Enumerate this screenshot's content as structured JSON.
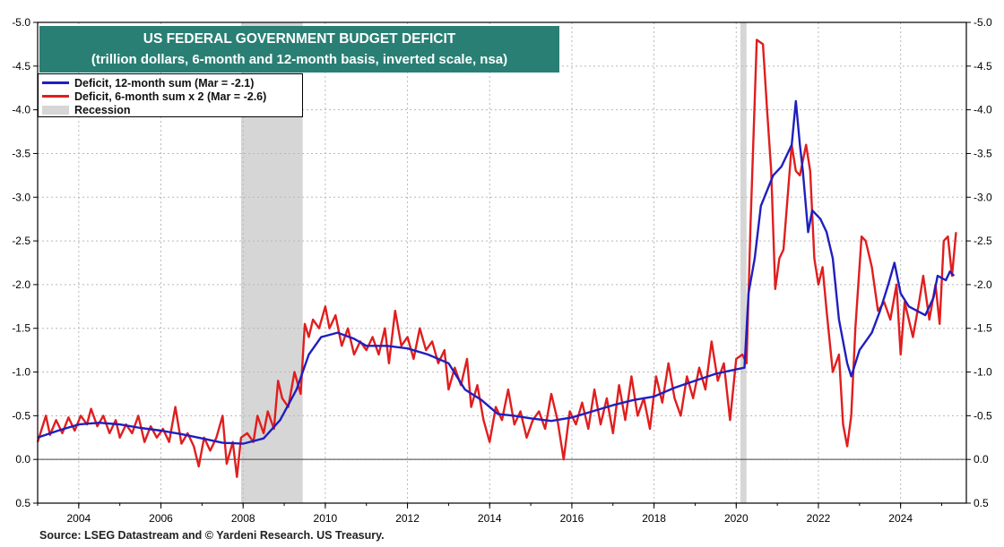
{
  "chart_data": {
    "type": "line",
    "title": "US FEDERAL GOVERNMENT BUDGET DEFICIT",
    "subtitle": "(trillion dollars, 6-month and 12-month basis, inverted scale, nsa)",
    "x_range": [
      2003.0,
      2025.6
    ],
    "ylim": [
      0.5,
      -5.0
    ],
    "y_inverted": true,
    "x_ticks": [
      "2004",
      "2006",
      "2008",
      "2010",
      "2012",
      "2014",
      "2016",
      "2018",
      "2020",
      "2022",
      "2024"
    ],
    "y_ticks": [
      "-5.0",
      "-4.5",
      "-4.0",
      "-3.5",
      "-3.0",
      "-2.5",
      "-2.0",
      "-1.5",
      "-1.0",
      "-0.5",
      "0.0",
      "0.5"
    ],
    "grid": true,
    "legend_position": "top-left",
    "recessions": [
      {
        "start": 2007.95,
        "end": 2009.45
      },
      {
        "start": 2020.1,
        "end": 2020.25
      }
    ],
    "series": [
      {
        "name": "Deficit, 12-month sum (Mar = -2.1)",
        "color": "#1f1fbf",
        "points": [
          [
            2003.0,
            -0.25
          ],
          [
            2003.5,
            -0.33
          ],
          [
            2004.0,
            -0.4
          ],
          [
            2004.5,
            -0.42
          ],
          [
            2005.0,
            -0.4
          ],
          [
            2005.5,
            -0.36
          ],
          [
            2006.0,
            -0.33
          ],
          [
            2006.5,
            -0.29
          ],
          [
            2007.0,
            -0.24
          ],
          [
            2007.5,
            -0.19
          ],
          [
            2008.0,
            -0.18
          ],
          [
            2008.5,
            -0.24
          ],
          [
            2008.9,
            -0.45
          ],
          [
            2009.3,
            -0.8
          ],
          [
            2009.6,
            -1.2
          ],
          [
            2009.9,
            -1.4
          ],
          [
            2010.3,
            -1.45
          ],
          [
            2010.7,
            -1.38
          ],
          [
            2011.0,
            -1.3
          ],
          [
            2011.5,
            -1.3
          ],
          [
            2012.0,
            -1.27
          ],
          [
            2012.5,
            -1.2
          ],
          [
            2013.0,
            -1.1
          ],
          [
            2013.4,
            -0.8
          ],
          [
            2013.8,
            -0.68
          ],
          [
            2014.2,
            -0.52
          ],
          [
            2014.6,
            -0.5
          ],
          [
            2015.0,
            -0.47
          ],
          [
            2015.5,
            -0.44
          ],
          [
            2016.0,
            -0.48
          ],
          [
            2016.5,
            -0.55
          ],
          [
            2017.0,
            -0.62
          ],
          [
            2017.5,
            -0.68
          ],
          [
            2018.0,
            -0.72
          ],
          [
            2018.5,
            -0.82
          ],
          [
            2019.0,
            -0.9
          ],
          [
            2019.5,
            -0.98
          ],
          [
            2020.0,
            -1.03
          ],
          [
            2020.2,
            -1.05
          ],
          [
            2020.3,
            -1.9
          ],
          [
            2020.45,
            -2.3
          ],
          [
            2020.6,
            -2.9
          ],
          [
            2020.9,
            -3.25
          ],
          [
            2021.1,
            -3.35
          ],
          [
            2021.25,
            -3.5
          ],
          [
            2021.35,
            -3.6
          ],
          [
            2021.45,
            -4.1
          ],
          [
            2021.55,
            -3.6
          ],
          [
            2021.62,
            -3.3
          ],
          [
            2021.75,
            -2.6
          ],
          [
            2021.85,
            -2.85
          ],
          [
            2022.05,
            -2.75
          ],
          [
            2022.2,
            -2.6
          ],
          [
            2022.35,
            -2.3
          ],
          [
            2022.5,
            -1.6
          ],
          [
            2022.7,
            -1.1
          ],
          [
            2022.8,
            -0.95
          ],
          [
            2022.9,
            -1.1
          ],
          [
            2023.0,
            -1.25
          ],
          [
            2023.3,
            -1.45
          ],
          [
            2023.5,
            -1.7
          ],
          [
            2023.7,
            -2.0
          ],
          [
            2023.85,
            -2.25
          ],
          [
            2024.0,
            -1.9
          ],
          [
            2024.2,
            -1.75
          ],
          [
            2024.4,
            -1.7
          ],
          [
            2024.6,
            -1.65
          ],
          [
            2024.8,
            -1.85
          ],
          [
            2024.9,
            -2.1
          ],
          [
            2025.1,
            -2.05
          ],
          [
            2025.2,
            -2.15
          ],
          [
            2025.3,
            -2.1
          ]
        ]
      },
      {
        "name": "Deficit, 6-month sum x 2 (Mar = -2.6)",
        "color": "#e01e1e",
        "points": [
          [
            2003.0,
            -0.2
          ],
          [
            2003.1,
            -0.35
          ],
          [
            2003.2,
            -0.5
          ],
          [
            2003.3,
            -0.28
          ],
          [
            2003.45,
            -0.45
          ],
          [
            2003.6,
            -0.3
          ],
          [
            2003.75,
            -0.48
          ],
          [
            2003.9,
            -0.33
          ],
          [
            2004.05,
            -0.5
          ],
          [
            2004.2,
            -0.4
          ],
          [
            2004.3,
            -0.58
          ],
          [
            2004.45,
            -0.38
          ],
          [
            2004.6,
            -0.5
          ],
          [
            2004.75,
            -0.3
          ],
          [
            2004.9,
            -0.45
          ],
          [
            2005.0,
            -0.25
          ],
          [
            2005.15,
            -0.4
          ],
          [
            2005.3,
            -0.3
          ],
          [
            2005.45,
            -0.5
          ],
          [
            2005.6,
            -0.2
          ],
          [
            2005.75,
            -0.38
          ],
          [
            2005.9,
            -0.25
          ],
          [
            2006.05,
            -0.35
          ],
          [
            2006.2,
            -0.2
          ],
          [
            2006.35,
            -0.6
          ],
          [
            2006.5,
            -0.18
          ],
          [
            2006.65,
            -0.3
          ],
          [
            2006.8,
            -0.15
          ],
          [
            2006.92,
            0.08
          ],
          [
            2007.05,
            -0.25
          ],
          [
            2007.2,
            -0.1
          ],
          [
            2007.35,
            -0.25
          ],
          [
            2007.5,
            -0.5
          ],
          [
            2007.6,
            0.05
          ],
          [
            2007.75,
            -0.2
          ],
          [
            2007.85,
            0.2
          ],
          [
            2007.95,
            -0.25
          ],
          [
            2008.1,
            -0.3
          ],
          [
            2008.25,
            -0.2
          ],
          [
            2008.35,
            -0.5
          ],
          [
            2008.5,
            -0.3
          ],
          [
            2008.6,
            -0.55
          ],
          [
            2008.75,
            -0.35
          ],
          [
            2008.85,
            -0.9
          ],
          [
            2008.95,
            -0.7
          ],
          [
            2009.1,
            -0.6
          ],
          [
            2009.25,
            -1.0
          ],
          [
            2009.4,
            -0.75
          ],
          [
            2009.5,
            -1.55
          ],
          [
            2009.6,
            -1.4
          ],
          [
            2009.7,
            -1.6
          ],
          [
            2009.85,
            -1.5
          ],
          [
            2010.0,
            -1.75
          ],
          [
            2010.1,
            -1.5
          ],
          [
            2010.25,
            -1.65
          ],
          [
            2010.4,
            -1.3
          ],
          [
            2010.55,
            -1.5
          ],
          [
            2010.7,
            -1.2
          ],
          [
            2010.85,
            -1.35
          ],
          [
            2011.0,
            -1.25
          ],
          [
            2011.15,
            -1.4
          ],
          [
            2011.3,
            -1.2
          ],
          [
            2011.45,
            -1.5
          ],
          [
            2011.55,
            -1.1
          ],
          [
            2011.7,
            -1.7
          ],
          [
            2011.85,
            -1.3
          ],
          [
            2012.0,
            -1.4
          ],
          [
            2012.15,
            -1.15
          ],
          [
            2012.3,
            -1.5
          ],
          [
            2012.45,
            -1.25
          ],
          [
            2012.6,
            -1.35
          ],
          [
            2012.75,
            -1.1
          ],
          [
            2012.9,
            -1.25
          ],
          [
            2013.0,
            -0.8
          ],
          [
            2013.15,
            -1.05
          ],
          [
            2013.3,
            -0.85
          ],
          [
            2013.45,
            -1.15
          ],
          [
            2013.55,
            -0.6
          ],
          [
            2013.7,
            -0.85
          ],
          [
            2013.85,
            -0.45
          ],
          [
            2014.0,
            -0.2
          ],
          [
            2014.15,
            -0.6
          ],
          [
            2014.3,
            -0.45
          ],
          [
            2014.45,
            -0.8
          ],
          [
            2014.6,
            -0.4
          ],
          [
            2014.75,
            -0.55
          ],
          [
            2014.9,
            -0.25
          ],
          [
            2015.05,
            -0.45
          ],
          [
            2015.2,
            -0.55
          ],
          [
            2015.35,
            -0.35
          ],
          [
            2015.5,
            -0.75
          ],
          [
            2015.65,
            -0.45
          ],
          [
            2015.8,
            0.0
          ],
          [
            2015.95,
            -0.55
          ],
          [
            2016.1,
            -0.4
          ],
          [
            2016.25,
            -0.65
          ],
          [
            2016.4,
            -0.35
          ],
          [
            2016.55,
            -0.8
          ],
          [
            2016.7,
            -0.4
          ],
          [
            2016.85,
            -0.7
          ],
          [
            2017.0,
            -0.3
          ],
          [
            2017.15,
            -0.85
          ],
          [
            2017.3,
            -0.45
          ],
          [
            2017.45,
            -0.95
          ],
          [
            2017.6,
            -0.5
          ],
          [
            2017.75,
            -0.7
          ],
          [
            2017.9,
            -0.35
          ],
          [
            2018.05,
            -0.95
          ],
          [
            2018.2,
            -0.65
          ],
          [
            2018.35,
            -1.1
          ],
          [
            2018.5,
            -0.7
          ],
          [
            2018.65,
            -0.5
          ],
          [
            2018.8,
            -0.95
          ],
          [
            2018.95,
            -0.7
          ],
          [
            2019.1,
            -1.05
          ],
          [
            2019.25,
            -0.8
          ],
          [
            2019.4,
            -1.35
          ],
          [
            2019.55,
            -0.9
          ],
          [
            2019.7,
            -1.1
          ],
          [
            2019.85,
            -0.45
          ],
          [
            2020.0,
            -1.15
          ],
          [
            2020.15,
            -1.2
          ],
          [
            2020.25,
            -1.1
          ],
          [
            2020.35,
            -2.7
          ],
          [
            2020.5,
            -4.8
          ],
          [
            2020.65,
            -4.75
          ],
          [
            2020.75,
            -4.0
          ],
          [
            2020.85,
            -3.3
          ],
          [
            2020.95,
            -1.95
          ],
          [
            2021.05,
            -2.3
          ],
          [
            2021.15,
            -2.4
          ],
          [
            2021.25,
            -3.0
          ],
          [
            2021.35,
            -3.6
          ],
          [
            2021.45,
            -3.3
          ],
          [
            2021.55,
            -3.25
          ],
          [
            2021.7,
            -3.6
          ],
          [
            2021.8,
            -3.3
          ],
          [
            2021.9,
            -2.3
          ],
          [
            2022.0,
            -2.0
          ],
          [
            2022.1,
            -2.2
          ],
          [
            2022.2,
            -1.7
          ],
          [
            2022.35,
            -1.0
          ],
          [
            2022.5,
            -1.2
          ],
          [
            2022.6,
            -0.4
          ],
          [
            2022.7,
            -0.15
          ],
          [
            2022.8,
            -0.5
          ],
          [
            2022.9,
            -1.5
          ],
          [
            2023.05,
            -2.55
          ],
          [
            2023.15,
            -2.5
          ],
          [
            2023.3,
            -2.2
          ],
          [
            2023.45,
            -1.7
          ],
          [
            2023.6,
            -1.8
          ],
          [
            2023.75,
            -1.6
          ],
          [
            2023.9,
            -2.0
          ],
          [
            2024.0,
            -1.2
          ],
          [
            2024.1,
            -1.8
          ],
          [
            2024.2,
            -1.6
          ],
          [
            2024.3,
            -1.4
          ],
          [
            2024.45,
            -1.8
          ],
          [
            2024.55,
            -2.1
          ],
          [
            2024.7,
            -1.6
          ],
          [
            2024.85,
            -2.0
          ],
          [
            2024.95,
            -1.55
          ],
          [
            2025.05,
            -2.5
          ],
          [
            2025.15,
            -2.55
          ],
          [
            2025.25,
            -2.1
          ],
          [
            2025.35,
            -2.6
          ]
        ]
      }
    ]
  },
  "legend": {
    "blue_label": "Deficit, 12-month sum (Mar = -2.1)",
    "red_label": "Deficit, 6-month sum x 2 (Mar = -2.6)",
    "recession_label": "Recession"
  },
  "colors": {
    "blue": "#1f1fbf",
    "red": "#e01e1e",
    "recession": "#d6d6d6",
    "title_bg": "#2a7f74"
  },
  "source": "Source: LSEG Datastream and © Yardeni Research. US Treasury."
}
